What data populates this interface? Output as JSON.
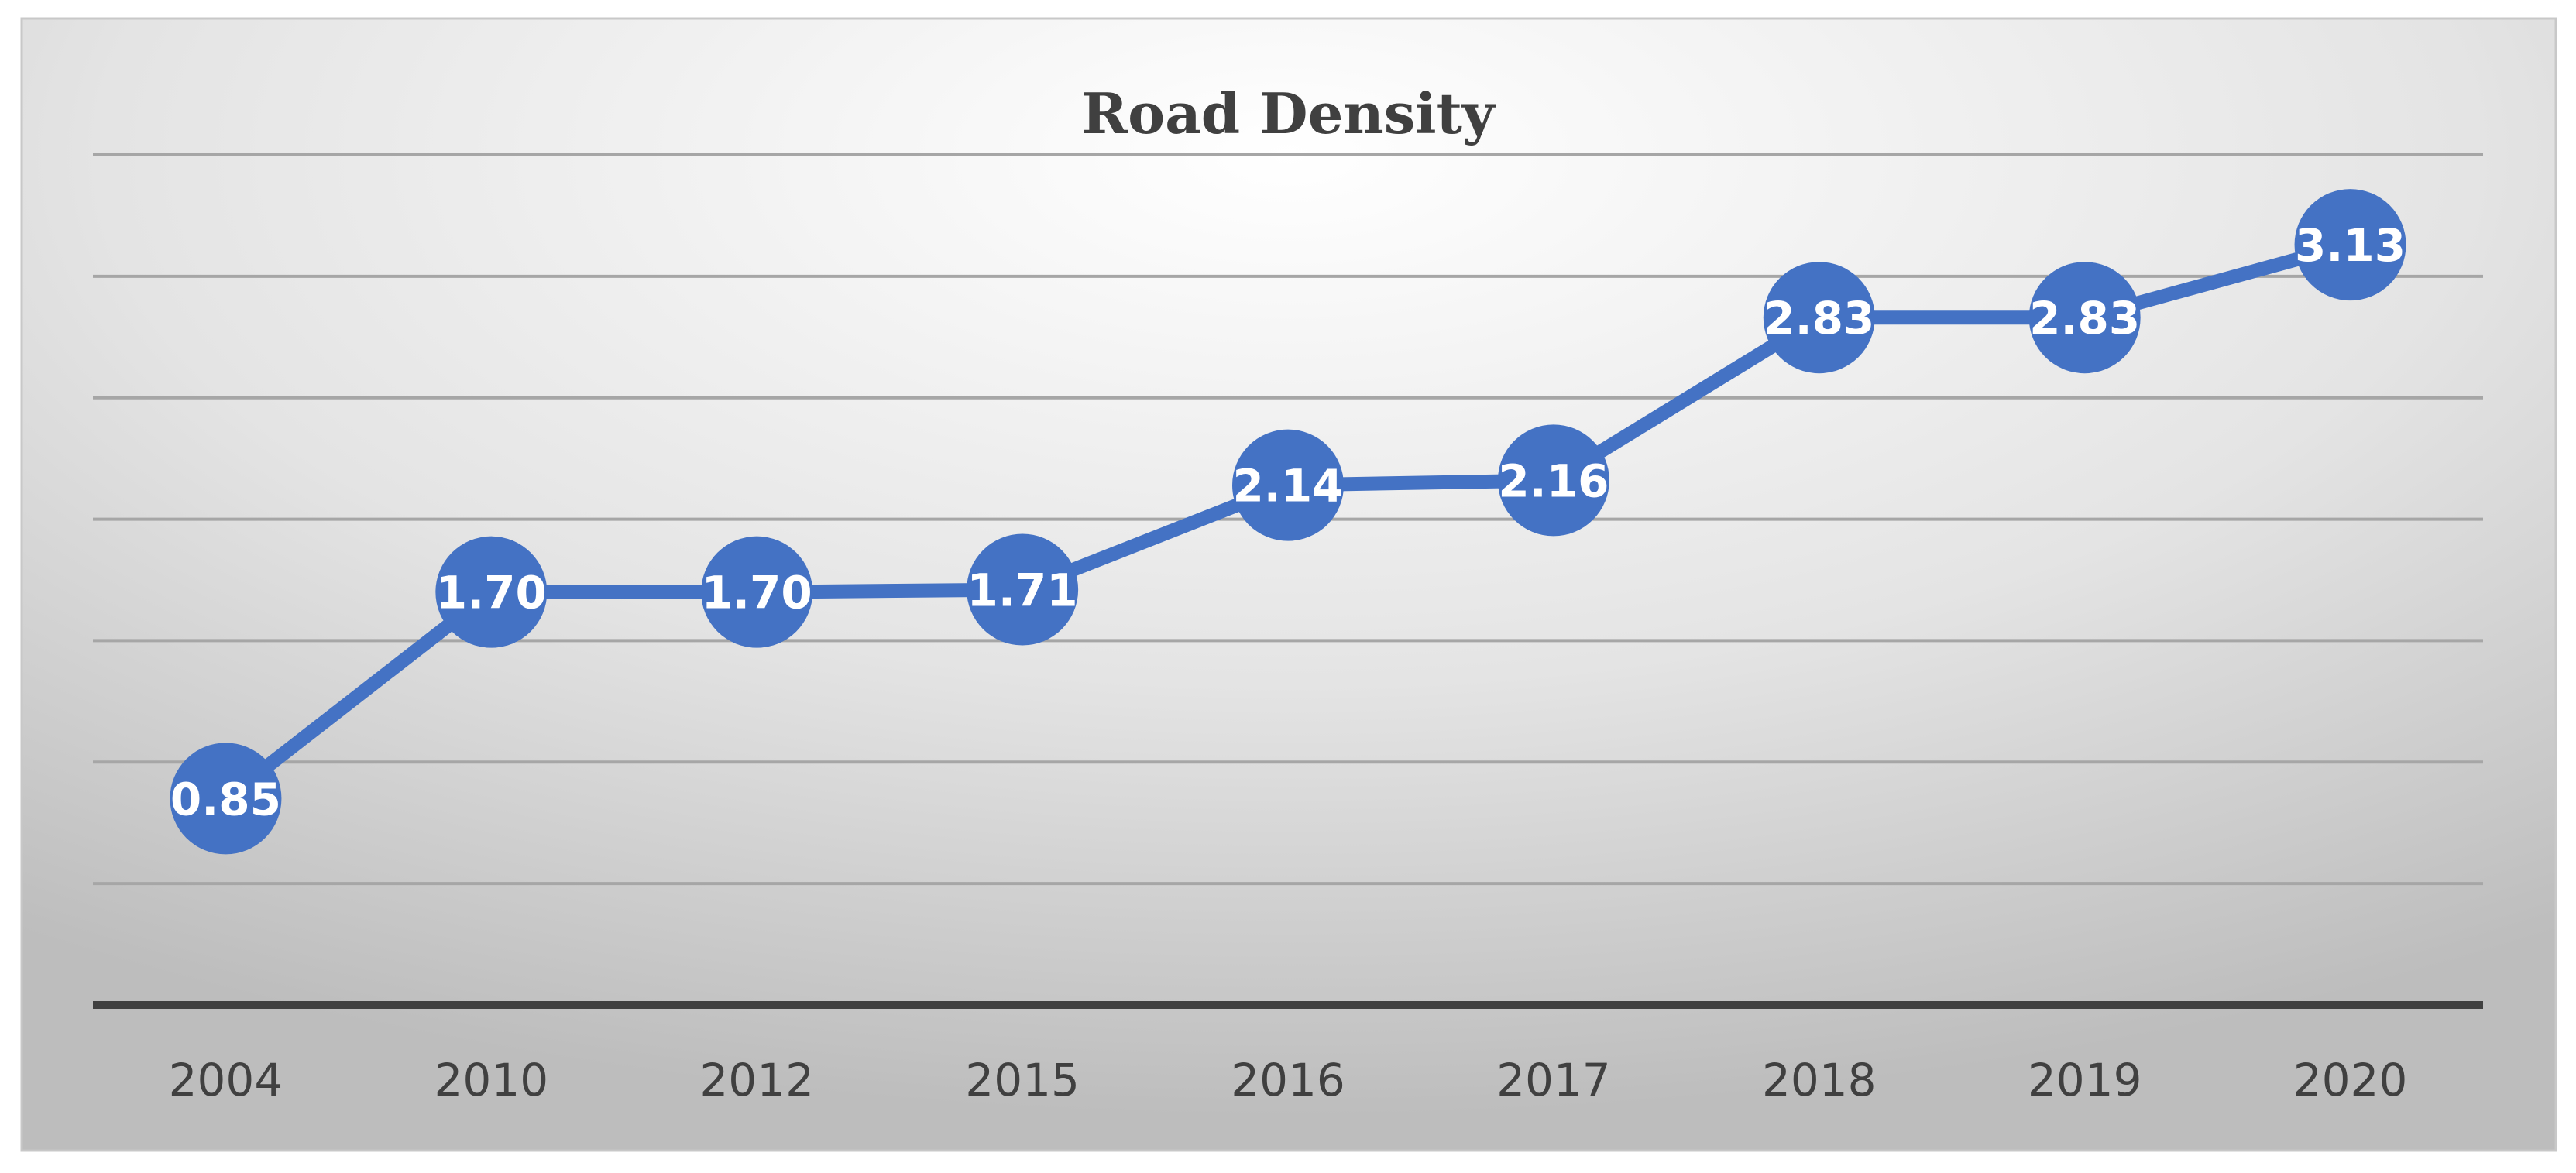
{
  "chart_data": {
    "type": "line",
    "title": "Road Density",
    "xlabel": "",
    "ylabel": "",
    "categories": [
      "2004",
      "2010",
      "2012",
      "2015",
      "2016",
      "2017",
      "2018",
      "2019",
      "2020"
    ],
    "series": [
      {
        "values": [
          0.85,
          1.7,
          1.7,
          1.71,
          2.14,
          2.16,
          2.83,
          2.83,
          3.13
        ],
        "labels": [
          "0.85",
          "1.70",
          "1.70",
          "1.71",
          "2.14",
          "2.16",
          "2.83",
          "2.83",
          "3.13"
        ]
      }
    ],
    "ylim": [
      0,
      3.5
    ],
    "y_gridlines": [
      0.5,
      1.0,
      1.5,
      2.0,
      2.5,
      3.0,
      3.5
    ],
    "show_y_axis_labels": false,
    "grid": true,
    "legend": "none",
    "colors": {
      "series": "#4472c4",
      "data_label": "#ffffff",
      "text": "#404040",
      "axis": "#404040",
      "grid": "#a6a6a6"
    }
  }
}
